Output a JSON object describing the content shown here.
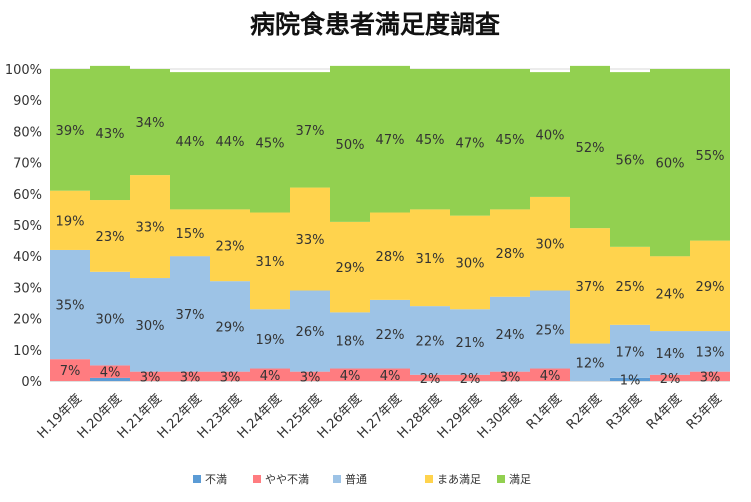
{
  "chart_data": {
    "type": "bar",
    "stacked": true,
    "title": "病院食患者満足度調査",
    "categories": [
      "H.19年度",
      "H.20年度",
      "H.21年度",
      "H.22年度",
      "H.23年度",
      "H.24年度",
      "H.25年度",
      "H.26年度",
      "H.27年度",
      "H.28年度",
      "H.29年度",
      "H.30年度",
      "R1年度",
      "R2年度",
      "R3年度",
      "R4年度",
      "R5年度"
    ],
    "ylim": [
      0,
      100
    ],
    "yticks": [
      "0%",
      "10%",
      "20%",
      "30%",
      "40%",
      "50%",
      "60%",
      "70%",
      "80%",
      "90%",
      "100%"
    ],
    "grid": true,
    "legend_position": "bottom",
    "series": [
      {
        "name": "不満",
        "color": "#5b9bd5",
        "values": [
          0,
          1,
          0,
          0,
          0,
          0,
          0,
          0,
          0,
          0,
          0,
          0,
          0,
          0,
          1,
          0,
          0
        ],
        "labels": [
          "",
          "",
          "",
          "",
          "",
          "",
          "",
          "",
          "",
          "",
          "",
          "",
          "",
          "",
          "1%",
          "",
          ""
        ]
      },
      {
        "name": "やや不満",
        "color": "#ff7c80",
        "values": [
          7,
          4,
          3,
          3,
          3,
          4,
          3,
          4,
          4,
          2,
          2,
          3,
          4,
          0,
          0,
          2,
          3
        ],
        "labels": [
          "7%",
          "4%",
          "3%",
          "3%",
          "3%",
          "4%",
          "3%",
          "4%",
          "4%",
          "2%",
          "2%",
          "3%",
          "4%",
          "",
          "",
          "2%",
          "3%"
        ]
      },
      {
        "name": "普通",
        "color": "#9dc3e6",
        "values": [
          35,
          30,
          30,
          37,
          29,
          19,
          26,
          18,
          22,
          22,
          21,
          24,
          25,
          12,
          17,
          14,
          13
        ],
        "labels": [
          "35%",
          "30%",
          "30%",
          "37%",
          "29%",
          "19%",
          "26%",
          "18%",
          "22%",
          "22%",
          "21%",
          "24%",
          "25%",
          "12%",
          "17%",
          "14%",
          "13%"
        ]
      },
      {
        "name": "まあ満足",
        "color": "#ffd34d",
        "values": [
          19,
          23,
          33,
          15,
          23,
          31,
          33,
          29,
          28,
          31,
          30,
          28,
          30,
          37,
          25,
          24,
          29
        ],
        "labels": [
          "19%",
          "23%",
          "33%",
          "15%",
          "23%",
          "31%",
          "33%",
          "29%",
          "28%",
          "31%",
          "30%",
          "28%",
          "30%",
          "37%",
          "25%",
          "24%",
          "29%"
        ]
      },
      {
        "name": "満足",
        "color": "#92d050",
        "values": [
          39,
          43,
          34,
          44,
          44,
          45,
          37,
          50,
          47,
          45,
          47,
          45,
          40,
          52,
          56,
          60,
          55
        ],
        "labels": [
          "39%",
          "43%",
          "34%",
          "44%",
          "44%",
          "45%",
          "37%",
          "50%",
          "47%",
          "45%",
          "47%",
          "45%",
          "40%",
          "52%",
          "56%",
          "60%",
          "55%"
        ]
      }
    ]
  }
}
